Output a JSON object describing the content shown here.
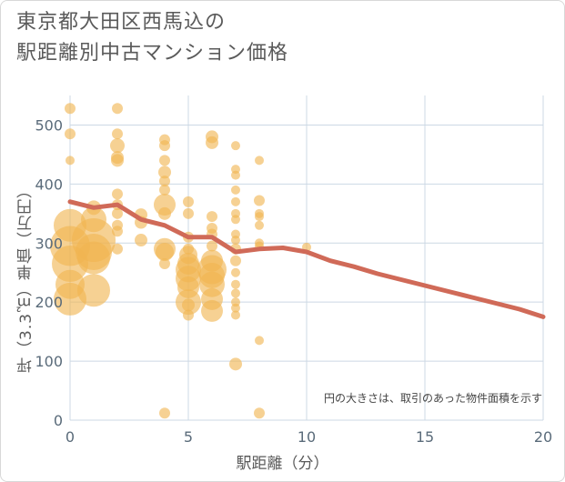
{
  "title_line1": "東京都大田区西馬込の",
  "title_line2": "駅距離別中古マンション価格",
  "annotation": "円の大きさは、取引のあった物件面積を示す",
  "chart_data": {
    "type": "scatter",
    "title": "東京都大田区西馬込の 駅距離別中古マンション価格",
    "xlabel": "駅距離（分）",
    "ylabel": "坪（3.3㎡）単価（万円）",
    "xlim": [
      0,
      20
    ],
    "ylim": [
      0,
      550
    ],
    "xticks": [
      0,
      5,
      10,
      15,
      20
    ],
    "yticks": [
      0,
      100,
      200,
      300,
      400,
      500
    ],
    "grid": true,
    "bubble_color": "#f0b450",
    "line_color": "#d06a58",
    "points": [
      {
        "x": 0,
        "y": 528,
        "s": 6
      },
      {
        "x": 0,
        "y": 485,
        "s": 6
      },
      {
        "x": 0,
        "y": 440,
        "s": 5
      },
      {
        "x": 0,
        "y": 330,
        "s": 18
      },
      {
        "x": 0,
        "y": 295,
        "s": 22
      },
      {
        "x": 0,
        "y": 265,
        "s": 20
      },
      {
        "x": 0,
        "y": 230,
        "s": 16
      },
      {
        "x": 0,
        "y": 205,
        "s": 18
      },
      {
        "x": 1,
        "y": 360,
        "s": 8
      },
      {
        "x": 1,
        "y": 340,
        "s": 14
      },
      {
        "x": 1,
        "y": 305,
        "s": 24
      },
      {
        "x": 1,
        "y": 285,
        "s": 20
      },
      {
        "x": 1,
        "y": 275,
        "s": 18
      },
      {
        "x": 1,
        "y": 220,
        "s": 18
      },
      {
        "x": 2,
        "y": 528,
        "s": 6
      },
      {
        "x": 2,
        "y": 485,
        "s": 6
      },
      {
        "x": 2,
        "y": 465,
        "s": 8
      },
      {
        "x": 2,
        "y": 445,
        "s": 7
      },
      {
        "x": 2,
        "y": 440,
        "s": 7
      },
      {
        "x": 2,
        "y": 383,
        "s": 6
      },
      {
        "x": 2,
        "y": 365,
        "s": 6
      },
      {
        "x": 2,
        "y": 350,
        "s": 6
      },
      {
        "x": 2,
        "y": 330,
        "s": 6
      },
      {
        "x": 2,
        "y": 320,
        "s": 6
      },
      {
        "x": 2,
        "y": 290,
        "s": 6
      },
      {
        "x": 3,
        "y": 348,
        "s": 7
      },
      {
        "x": 3,
        "y": 335,
        "s": 7
      },
      {
        "x": 3,
        "y": 305,
        "s": 7
      },
      {
        "x": 4,
        "y": 475,
        "s": 6
      },
      {
        "x": 4,
        "y": 465,
        "s": 6
      },
      {
        "x": 4,
        "y": 440,
        "s": 6
      },
      {
        "x": 4,
        "y": 420,
        "s": 7
      },
      {
        "x": 4,
        "y": 405,
        "s": 6
      },
      {
        "x": 4,
        "y": 390,
        "s": 6
      },
      {
        "x": 4,
        "y": 365,
        "s": 12
      },
      {
        "x": 4,
        "y": 350,
        "s": 7
      },
      {
        "x": 4,
        "y": 290,
        "s": 12
      },
      {
        "x": 4,
        "y": 285,
        "s": 10
      },
      {
        "x": 4,
        "y": 265,
        "s": 6
      },
      {
        "x": 4,
        "y": 12,
        "s": 6
      },
      {
        "x": 5,
        "y": 370,
        "s": 6
      },
      {
        "x": 5,
        "y": 350,
        "s": 6
      },
      {
        "x": 5,
        "y": 310,
        "s": 6
      },
      {
        "x": 5,
        "y": 290,
        "s": 6
      },
      {
        "x": 5,
        "y": 280,
        "s": 10
      },
      {
        "x": 5,
        "y": 265,
        "s": 12
      },
      {
        "x": 5,
        "y": 255,
        "s": 14
      },
      {
        "x": 5,
        "y": 240,
        "s": 14
      },
      {
        "x": 5,
        "y": 225,
        "s": 12
      },
      {
        "x": 5,
        "y": 200,
        "s": 14
      },
      {
        "x": 5,
        "y": 195,
        "s": 7
      },
      {
        "x": 5,
        "y": 178,
        "s": 6
      },
      {
        "x": 6,
        "y": 480,
        "s": 7
      },
      {
        "x": 6,
        "y": 470,
        "s": 7
      },
      {
        "x": 6,
        "y": 345,
        "s": 6
      },
      {
        "x": 6,
        "y": 325,
        "s": 6
      },
      {
        "x": 6,
        "y": 315,
        "s": 6
      },
      {
        "x": 6,
        "y": 295,
        "s": 6
      },
      {
        "x": 6,
        "y": 270,
        "s": 12
      },
      {
        "x": 6,
        "y": 255,
        "s": 16
      },
      {
        "x": 6,
        "y": 245,
        "s": 14
      },
      {
        "x": 6,
        "y": 230,
        "s": 14
      },
      {
        "x": 6,
        "y": 205,
        "s": 12
      },
      {
        "x": 6,
        "y": 185,
        "s": 12
      },
      {
        "x": 7,
        "y": 465,
        "s": 5
      },
      {
        "x": 7,
        "y": 425,
        "s": 5
      },
      {
        "x": 7,
        "y": 415,
        "s": 5
      },
      {
        "x": 7,
        "y": 390,
        "s": 5
      },
      {
        "x": 7,
        "y": 370,
        "s": 5
      },
      {
        "x": 7,
        "y": 350,
        "s": 5
      },
      {
        "x": 7,
        "y": 340,
        "s": 5
      },
      {
        "x": 7,
        "y": 315,
        "s": 5
      },
      {
        "x": 7,
        "y": 305,
        "s": 5
      },
      {
        "x": 7,
        "y": 290,
        "s": 6
      },
      {
        "x": 7,
        "y": 270,
        "s": 6
      },
      {
        "x": 7,
        "y": 250,
        "s": 5
      },
      {
        "x": 7,
        "y": 230,
        "s": 5
      },
      {
        "x": 7,
        "y": 215,
        "s": 5
      },
      {
        "x": 7,
        "y": 200,
        "s": 5
      },
      {
        "x": 7,
        "y": 190,
        "s": 5
      },
      {
        "x": 7,
        "y": 178,
        "s": 5
      },
      {
        "x": 7,
        "y": 95,
        "s": 7
      },
      {
        "x": 8,
        "y": 440,
        "s": 5
      },
      {
        "x": 8,
        "y": 372,
        "s": 6
      },
      {
        "x": 8,
        "y": 350,
        "s": 5
      },
      {
        "x": 8,
        "y": 345,
        "s": 5
      },
      {
        "x": 8,
        "y": 330,
        "s": 5
      },
      {
        "x": 8,
        "y": 300,
        "s": 5
      },
      {
        "x": 8,
        "y": 295,
        "s": 5
      },
      {
        "x": 8,
        "y": 135,
        "s": 5
      },
      {
        "x": 8,
        "y": 12,
        "s": 6
      },
      {
        "x": 10,
        "y": 293,
        "s": 5
      }
    ],
    "series": [
      {
        "type": "line",
        "x": [
          0,
          1,
          2,
          3,
          4,
          5,
          6,
          7,
          8,
          9,
          10,
          11,
          12,
          13,
          14,
          15,
          16,
          17,
          18,
          19,
          20
        ],
        "values": [
          370,
          360,
          365,
          340,
          330,
          310,
          310,
          285,
          290,
          292,
          285,
          270,
          260,
          248,
          238,
          228,
          218,
          208,
          198,
          188,
          175
        ]
      }
    ]
  }
}
